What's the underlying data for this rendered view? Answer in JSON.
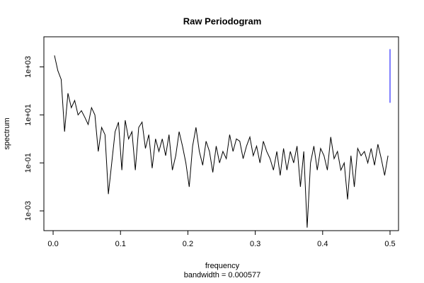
{
  "chart_data": {
    "type": "line",
    "title": "Raw Periodogram",
    "x_label": "frequency",
    "subtitle": "bandwidth = 0.000577",
    "y_label": "spectrum",
    "ylog": true,
    "xlim": [
      -0.0137,
      0.5126
    ],
    "ylim": [
      0.00015,
      18000
    ],
    "xticks": [
      {
        "value": 0,
        "label": "0.0"
      },
      0.1,
      0.2,
      0.3,
      0.4,
      0.5
    ],
    "yticks": [
      {
        "value": 0.001,
        "label": "1e-03"
      },
      {
        "value": 0.1,
        "label": "1e-01"
      },
      {
        "value": 10,
        "label": "1e+01"
      },
      {
        "value": 1000,
        "label": "1e+03"
      }
    ],
    "x": [
      0.002,
      0.007,
      0.012,
      0.017,
      0.022,
      0.027,
      0.032,
      0.037,
      0.042,
      0.047,
      0.052,
      0.057,
      0.062,
      0.067,
      0.072,
      0.077,
      0.082,
      0.087,
      0.092,
      0.097,
      0.102,
      0.107,
      0.112,
      0.117,
      0.122,
      0.127,
      0.132,
      0.137,
      0.142,
      0.147,
      0.152,
      0.157,
      0.162,
      0.167,
      0.172,
      0.177,
      0.182,
      0.187,
      0.192,
      0.197,
      0.202,
      0.207,
      0.212,
      0.217,
      0.222,
      0.227,
      0.232,
      0.237,
      0.242,
      0.247,
      0.252,
      0.257,
      0.262,
      0.267,
      0.272,
      0.277,
      0.282,
      0.287,
      0.292,
      0.297,
      0.302,
      0.307,
      0.312,
      0.317,
      0.322,
      0.327,
      0.332,
      0.337,
      0.342,
      0.347,
      0.352,
      0.357,
      0.362,
      0.367,
      0.372,
      0.377,
      0.382,
      0.387,
      0.392,
      0.397,
      0.402,
      0.407,
      0.412,
      0.417,
      0.422,
      0.427,
      0.432,
      0.437,
      0.442,
      0.447,
      0.452,
      0.457,
      0.462,
      0.467,
      0.472,
      0.477,
      0.482,
      0.487,
      0.492,
      0.497
    ],
    "series": [
      {
        "color": "#000000",
        "values": [
          3000,
          700,
          300,
          2,
          80,
          20,
          40,
          10,
          15,
          8,
          4,
          20,
          10,
          0.3,
          3,
          1.5,
          0.005,
          0.1,
          2,
          5,
          0.05,
          6,
          1,
          2,
          0.05,
          3,
          5,
          0.4,
          1.5,
          0.06,
          1,
          0.3,
          1,
          0.2,
          1.5,
          0.05,
          0.2,
          2,
          0.5,
          0.1,
          0.01,
          0.5,
          3,
          0.3,
          0.08,
          0.8,
          0.3,
          0.04,
          0.5,
          0.1,
          0.3,
          0.15,
          1.5,
          0.3,
          1,
          0.8,
          0.15,
          0.5,
          1.2,
          0.2,
          0.5,
          0.1,
          0.8,
          0.3,
          0.15,
          0.05,
          0.3,
          0.03,
          0.4,
          0.05,
          0.3,
          0.1,
          0.5,
          0.01,
          0.3,
          0.0002,
          0.1,
          0.5,
          0.05,
          0.4,
          0.2,
          0.05,
          1.2,
          0.15,
          0.3,
          0.05,
          0.1,
          0.003,
          0.2,
          0.01,
          0.4,
          0.2,
          0.3,
          0.1,
          0.4,
          0.08,
          0.6,
          0.15,
          0.03,
          0.2
        ]
      }
    ],
    "ci": {
      "x": 0.5,
      "values": [
        32,
        5500
      ],
      "color": "#0000ff"
    }
  }
}
